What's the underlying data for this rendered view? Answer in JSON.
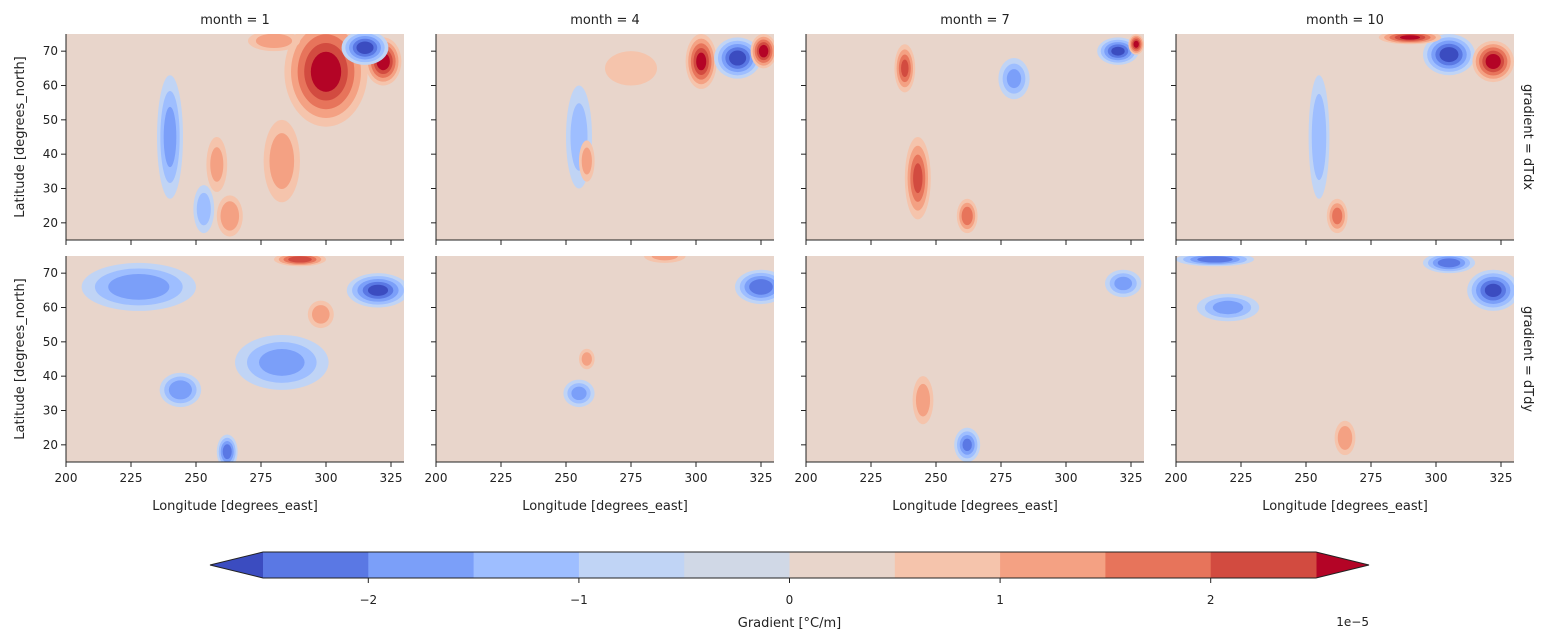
{
  "chart_data": {
    "type": "heatmap",
    "subtype": "filled-contour facet grid",
    "column_titles": [
      "month = 1",
      "month = 4",
      "month = 7",
      "month = 10"
    ],
    "row_titles": [
      "gradient = dTdx",
      "gradient = dTdy"
    ],
    "xlabel": "Longitude [degrees_east]",
    "ylabel": "Latitude [degrees_north]",
    "xlim": [
      200,
      330
    ],
    "ylim": [
      15,
      75
    ],
    "xticks": [
      "200",
      "225",
      "250",
      "275",
      "300",
      "325"
    ],
    "yticks": [
      "20",
      "30",
      "40",
      "50",
      "60",
      "70"
    ],
    "colorbar": {
      "label": "Gradient [°C/m]",
      "scale_label": "1e−5",
      "ticks": [
        "−2",
        "−1",
        "0",
        "1",
        "2"
      ],
      "tick_values": [
        -2,
        -1,
        0,
        1,
        2
      ],
      "levels": [
        -2.5,
        -2.0,
        -1.5,
        -1.0,
        -0.5,
        0,
        0.5,
        1.0,
        1.5,
        2.0,
        2.5
      ],
      "extend": "both",
      "colors": [
        "#3b4cc0",
        "#5a78e4",
        "#7b9ff9",
        "#9ebeff",
        "#c0d4f5",
        "#d0d8e6",
        "#e8d5cb",
        "#f5c4ac",
        "#f4a183",
        "#e7745b",
        "#d24b40",
        "#b40426"
      ]
    },
    "features": [
      {
        "panel": [
          0,
          0
        ],
        "lon": 300,
        "lat": 64,
        "rx": 16,
        "ry": 16,
        "v": 2.8
      },
      {
        "panel": [
          0,
          0
        ],
        "lon": 322,
        "lat": 67,
        "rx": 7,
        "ry": 7,
        "v": 2.8
      },
      {
        "panel": [
          0,
          0
        ],
        "lon": 315,
        "lat": 71,
        "rx": 9,
        "ry": 5,
        "v": -2.8
      },
      {
        "panel": [
          0,
          0
        ],
        "lon": 280,
        "lat": 73,
        "rx": 10,
        "ry": 3,
        "v": 1.3
      },
      {
        "panel": [
          0,
          0
        ],
        "lon": 240,
        "lat": 45,
        "rx": 5,
        "ry": 18,
        "v": -1.6
      },
      {
        "panel": [
          0,
          0
        ],
        "lon": 283,
        "lat": 38,
        "rx": 7,
        "ry": 12,
        "v": 1.2
      },
      {
        "panel": [
          0,
          0
        ],
        "lon": 263,
        "lat": 22,
        "rx": 5,
        "ry": 6,
        "v": 1.4
      },
      {
        "panel": [
          0,
          0
        ],
        "lon": 258,
        "lat": 37,
        "rx": 4,
        "ry": 8,
        "v": 1.0
      },
      {
        "panel": [
          0,
          0
        ],
        "lon": 253,
        "lat": 24,
        "rx": 4,
        "ry": 7,
        "v": -1.2
      },
      {
        "panel": [
          0,
          1
        ],
        "lon": 302,
        "lat": 67,
        "rx": 6,
        "ry": 8,
        "v": 2.6
      },
      {
        "panel": [
          0,
          1
        ],
        "lon": 316,
        "lat": 68,
        "rx": 9,
        "ry": 6,
        "v": -2.8
      },
      {
        "panel": [
          0,
          1
        ],
        "lon": 326,
        "lat": 70,
        "rx": 5,
        "ry": 5,
        "v": 2.8
      },
      {
        "panel": [
          0,
          1
        ],
        "lon": 255,
        "lat": 45,
        "rx": 5,
        "ry": 15,
        "v": -1.1
      },
      {
        "panel": [
          0,
          1
        ],
        "lon": 258,
        "lat": 38,
        "rx": 3,
        "ry": 6,
        "v": 1.1
      },
      {
        "panel": [
          0,
          1
        ],
        "lon": 275,
        "lat": 65,
        "rx": 10,
        "ry": 5,
        "v": 0.9
      },
      {
        "panel": [
          0,
          2
        ],
        "lon": 238,
        "lat": 65,
        "rx": 4,
        "ry": 7,
        "v": 2.0
      },
      {
        "panel": [
          0,
          2
        ],
        "lon": 243,
        "lat": 33,
        "rx": 5,
        "ry": 12,
        "v": 2.0
      },
      {
        "panel": [
          0,
          2
        ],
        "lon": 262,
        "lat": 22,
        "rx": 4,
        "ry": 5,
        "v": 1.8
      },
      {
        "panel": [
          0,
          2
        ],
        "lon": 280,
        "lat": 62,
        "rx": 6,
        "ry": 6,
        "v": -1.5
      },
      {
        "panel": [
          0,
          2
        ],
        "lon": 320,
        "lat": 70,
        "rx": 8,
        "ry": 4,
        "v": -2.6
      },
      {
        "panel": [
          0,
          2
        ],
        "lon": 327,
        "lat": 72,
        "rx": 3,
        "ry": 3,
        "v": 2.7
      },
      {
        "panel": [
          0,
          3
        ],
        "lon": 305,
        "lat": 69,
        "rx": 10,
        "ry": 6,
        "v": -2.8
      },
      {
        "panel": [
          0,
          3
        ],
        "lon": 322,
        "lat": 67,
        "rx": 8,
        "ry": 6,
        "v": 2.8
      },
      {
        "panel": [
          0,
          3
        ],
        "lon": 290,
        "lat": 74,
        "rx": 12,
        "ry": 2,
        "v": 2.6
      },
      {
        "panel": [
          0,
          3
        ],
        "lon": 255,
        "lat": 45,
        "rx": 4,
        "ry": 18,
        "v": -1.3
      },
      {
        "panel": [
          0,
          3
        ],
        "lon": 262,
        "lat": 22,
        "rx": 4,
        "ry": 5,
        "v": 1.6
      },
      {
        "panel": [
          1,
          0
        ],
        "lon": 228,
        "lat": 66,
        "rx": 22,
        "ry": 7,
        "v": -1.8
      },
      {
        "panel": [
          1,
          0
        ],
        "lon": 244,
        "lat": 36,
        "rx": 8,
        "ry": 5,
        "v": -1.9
      },
      {
        "panel": [
          1,
          0
        ],
        "lon": 283,
        "lat": 44,
        "rx": 18,
        "ry": 8,
        "v": -1.6
      },
      {
        "panel": [
          1,
          0
        ],
        "lon": 320,
        "lat": 65,
        "rx": 12,
        "ry": 5,
        "v": -2.6
      },
      {
        "panel": [
          1,
          0
        ],
        "lon": 290,
        "lat": 74,
        "rx": 10,
        "ry": 2,
        "v": 2.4
      },
      {
        "panel": [
          1,
          0
        ],
        "lon": 298,
        "lat": 58,
        "rx": 5,
        "ry": 4,
        "v": 1.2
      },
      {
        "panel": [
          1,
          0
        ],
        "lon": 262,
        "lat": 18,
        "rx": 4,
        "ry": 5,
        "v": -2.3
      },
      {
        "panel": [
          1,
          1
        ],
        "lon": 325,
        "lat": 66,
        "rx": 10,
        "ry": 5,
        "v": -2.4
      },
      {
        "panel": [
          1,
          1
        ],
        "lon": 255,
        "lat": 35,
        "rx": 6,
        "ry": 4,
        "v": -1.6
      },
      {
        "panel": [
          1,
          1
        ],
        "lon": 258,
        "lat": 45,
        "rx": 3,
        "ry": 3,
        "v": 1.1
      },
      {
        "panel": [
          1,
          1
        ],
        "lon": 288,
        "lat": 75,
        "rx": 8,
        "ry": 2,
        "v": 1.0
      },
      {
        "panel": [
          1,
          2
        ],
        "lon": 245,
        "lat": 33,
        "rx": 4,
        "ry": 7,
        "v": 1.2
      },
      {
        "panel": [
          1,
          2
        ],
        "lon": 262,
        "lat": 20,
        "rx": 5,
        "ry": 5,
        "v": -2.0
      },
      {
        "panel": [
          1,
          2
        ],
        "lon": 322,
        "lat": 67,
        "rx": 7,
        "ry": 4,
        "v": -1.6
      },
      {
        "panel": [
          1,
          3
        ],
        "lon": 305,
        "lat": 73,
        "rx": 10,
        "ry": 3,
        "v": -2.3
      },
      {
        "panel": [
          1,
          3
        ],
        "lon": 322,
        "lat": 65,
        "rx": 10,
        "ry": 6,
        "v": -2.6
      },
      {
        "panel": [
          1,
          3
        ],
        "lon": 220,
        "lat": 60,
        "rx": 12,
        "ry": 4,
        "v": -1.6
      },
      {
        "panel": [
          1,
          3
        ],
        "lon": 265,
        "lat": 22,
        "rx": 4,
        "ry": 5,
        "v": 1.3
      },
      {
        "panel": [
          1,
          3
        ],
        "lon": 215,
        "lat": 74,
        "rx": 15,
        "ry": 2,
        "v": -2.4
      }
    ]
  }
}
